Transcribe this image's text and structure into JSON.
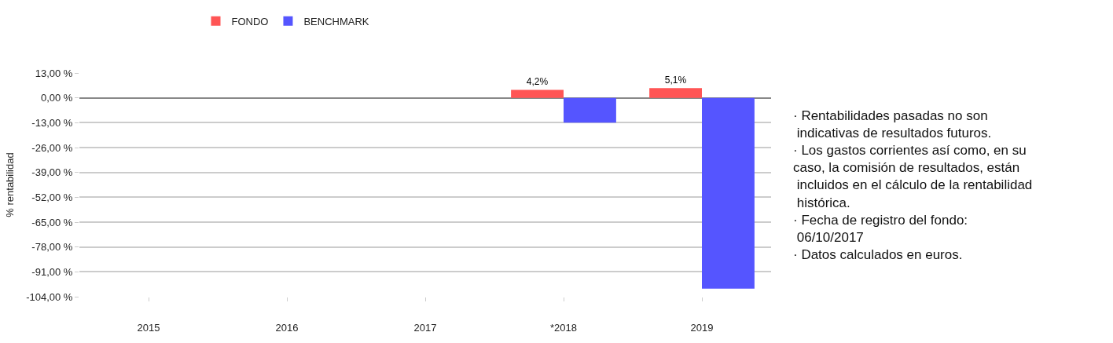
{
  "chart_data": {
    "type": "bar",
    "ylabel": "% rentabilidad",
    "categories": [
      "2015",
      "2016",
      "2017",
      "*2018",
      "2019"
    ],
    "series": [
      {
        "name": "FONDO",
        "color": "#ff5555",
        "values": [
          null,
          null,
          null,
          4.2,
          5.1
        ],
        "value_labels": [
          null,
          null,
          null,
          "4,2%",
          "5,1%"
        ]
      },
      {
        "name": "BENCHMARK",
        "color": "#5555ff",
        "values": [
          null,
          null,
          null,
          -13,
          -99.8
        ]
      }
    ],
    "ylim": [
      -104,
      13
    ],
    "yticks": [
      {
        "value": 13,
        "label": "13,00 %"
      },
      {
        "value": 0,
        "label": "0,00 %"
      },
      {
        "value": -13,
        "label": "-13,00 %"
      },
      {
        "value": -26,
        "label": "-26,00 %"
      },
      {
        "value": -39,
        "label": "-39,00 %"
      },
      {
        "value": -52,
        "label": "-52,00 %"
      },
      {
        "value": -65,
        "label": "-65,00 %"
      },
      {
        "value": -78,
        "label": "-78,00 %"
      },
      {
        "value": -91,
        "label": "-91,00 %"
      },
      {
        "value": -104,
        "label": "-104,00 %"
      }
    ],
    "grid": "y",
    "legend": "top",
    "annotations": [
      "· Rentabilidades pasadas no son\n indicativas de resultados futuros.\n· Los gastos corrientes así como, en su\ncaso, la comisión de resultados, están\n incluidos en el cálculo de la rentabilidad\n histórica.\n· Fecha de registro del fondo:\n 06/10/2017\n· Datos calculados en euros."
    ]
  }
}
